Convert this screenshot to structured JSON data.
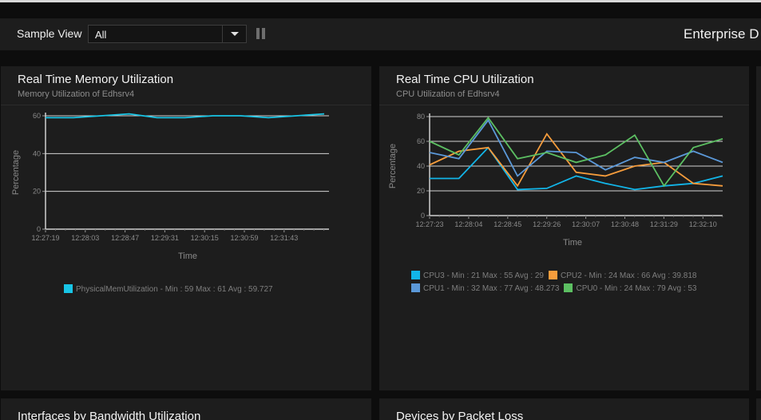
{
  "toolbar": {
    "sample_view_label": "Sample View",
    "sample_view_value": "All",
    "dashboard_title": "Enterprise D"
  },
  "colors": {
    "cpu3": "#12b5e8",
    "cpu2": "#f59c3c",
    "cpu1": "#5b98d8",
    "cpu0": "#5cbf62",
    "memory": "#18c5e6"
  },
  "panels": {
    "memory": {
      "title": "Real Time Memory Utilization",
      "subtitle": "Memory Utilization of Edhsrv4"
    },
    "cpu": {
      "title": "Real Time CPU Utilization",
      "subtitle": "CPU Utilization of Edhsrv4"
    },
    "bandwidth": {
      "title": "Interfaces by Bandwidth Utilization"
    },
    "packetloss": {
      "title": "Devices by Packet Loss"
    }
  },
  "chart_data": [
    {
      "type": "line",
      "xlabel": "Time",
      "ylabel": "Percentage",
      "ylim": [
        0,
        60
      ],
      "yticks": [
        0,
        20,
        40,
        60
      ],
      "xticks": [
        "12:27:19",
        "12:28:03",
        "12:28:47",
        "12:29:31",
        "12:30:15",
        "12:30:59",
        "12:31:43"
      ],
      "grid": true,
      "legend_position": "bottom",
      "series": [
        {
          "name": "PhysicalMemUtilization - Min : 59 Max : 61 Avg : 59.727",
          "color": "#18c5e6",
          "values": [
            59,
            59,
            60,
            61,
            59,
            59,
            60,
            60,
            59,
            60,
            61
          ]
        }
      ]
    },
    {
      "type": "line",
      "xlabel": "Time",
      "ylabel": "Percentage",
      "ylim": [
        0,
        80
      ],
      "yticks": [
        0,
        20,
        40,
        60,
        80
      ],
      "xticks": [
        "12:27:23",
        "12:28:04",
        "12:28:45",
        "12:29:26",
        "12:30:07",
        "12:30:48",
        "12:31:29",
        "12:32:10"
      ],
      "grid": true,
      "legend_position": "bottom",
      "series": [
        {
          "name": "CPU3 - Min : 21 Max : 55 Avg : 29",
          "color": "#12b5e8",
          "values": [
            30,
            30,
            55,
            21,
            22,
            32,
            26,
            21,
            24,
            26,
            32
          ]
        },
        {
          "name": "CPU2 - Min : 24 Max : 66 Avg : 39.818",
          "color": "#f59c3c",
          "values": [
            41,
            52,
            55,
            24,
            66,
            35,
            32,
            40,
            43,
            26,
            24
          ]
        },
        {
          "name": "CPU1 - Min : 32 Max : 77 Avg : 48.273",
          "color": "#5b98d8",
          "values": [
            51,
            46,
            77,
            32,
            52,
            51,
            37,
            47,
            43,
            52,
            43
          ]
        },
        {
          "name": "CPU0 - Min : 24 Max : 79 Avg : 53",
          "color": "#5cbf62",
          "values": [
            60,
            49,
            79,
            46,
            51,
            43,
            49,
            65,
            24,
            55,
            62
          ]
        }
      ]
    }
  ]
}
